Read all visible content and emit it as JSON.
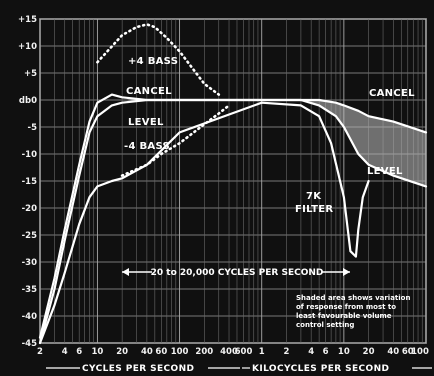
{
  "chart_data": {
    "type": "line",
    "title": "",
    "y_ticks": [
      "+15",
      "+10",
      "+5",
      "db0",
      "-5",
      "-10",
      "-15",
      "-20",
      "-25",
      "-30",
      "-35",
      "-40",
      "-45"
    ],
    "y_values": [
      15,
      10,
      5,
      0,
      -5,
      -10,
      -15,
      -20,
      -25,
      -30,
      -35,
      -40,
      -45
    ],
    "ylim": [
      -45,
      15
    ],
    "x_ticks_hz": [
      "2",
      "4",
      "6",
      "10",
      "20",
      "40",
      "60",
      "100",
      "200",
      "400",
      "600"
    ],
    "x_ticks_khz": [
      "1",
      "2",
      "4",
      "6",
      "10",
      "20",
      "40",
      "60",
      "100"
    ],
    "xlabel_left": "CYCLES PER SECOND",
    "xlabel_right": "KILOCYCLES PER SECOND",
    "grid": true,
    "series": [
      {
        "name": "+4 BASS",
        "style": "dotted",
        "x": [
          10,
          20,
          30,
          40,
          50,
          70,
          100,
          150,
          200,
          300
        ],
        "y": [
          7,
          12,
          13.5,
          14,
          13.5,
          11.5,
          9,
          5.5,
          3,
          1
        ]
      },
      {
        "name": "CANCEL",
        "style": "solid",
        "x": [
          2,
          3,
          4,
          6,
          8,
          10,
          15,
          20,
          40,
          100,
          1000,
          3000,
          5000,
          8000,
          10000,
          15000,
          20000,
          40000,
          100000
        ],
        "y": [
          -44,
          -33,
          -24,
          -12,
          -4,
          -0.5,
          1,
          0.5,
          0,
          0,
          0,
          0,
          0,
          -0.5,
          -1,
          -2,
          -3,
          -4,
          -6
        ]
      },
      {
        "name": "LEVEL",
        "style": "solid",
        "x": [
          2,
          3,
          4,
          6,
          8,
          10,
          15,
          20,
          40,
          100,
          1000,
          3000,
          5000,
          8000,
          10000,
          15000,
          20000,
          40000,
          100000
        ],
        "y": [
          -45,
          -35,
          -26,
          -14,
          -6,
          -3,
          -1,
          -0.5,
          0,
          0,
          0,
          0,
          -1,
          -3,
          -5,
          -10,
          -12,
          -14,
          -16
        ]
      },
      {
        "name": "-4 BASS",
        "style": "dotted",
        "x": [
          20,
          40,
          60,
          100,
          200,
          300,
          400
        ],
        "y": [
          -14,
          -12,
          -10,
          -8,
          -4.5,
          -2.5,
          -1
        ]
      },
      {
        "name": "7K FILTER",
        "style": "solid",
        "x": [
          2,
          3,
          4,
          6,
          8,
          10,
          15,
          20,
          40,
          100,
          1000,
          3000,
          5000,
          7000,
          10000,
          12000,
          14000,
          15000,
          17000,
          20000
        ],
        "y": [
          -45,
          -38,
          -32,
          -23,
          -18,
          -16,
          -15,
          -14.5,
          -12,
          -6,
          -0.5,
          -1,
          -3,
          -8,
          -18,
          -28,
          -29,
          -24,
          -18,
          -15
        ]
      }
    ],
    "annotations": [
      {
        "text": "+4 BASS"
      },
      {
        "text": "CANCEL"
      },
      {
        "text": "LEVEL"
      },
      {
        "text": "-4 BASS"
      },
      {
        "text": "CANCEL"
      },
      {
        "text": "LEVEL"
      },
      {
        "text": "7K"
      },
      {
        "text": "FILTER"
      }
    ],
    "range_label": "20 to 20,000 CYCLES PER SECOND",
    "note": [
      "Shaded area shows variation",
      "of response from most to",
      "least favourable volume",
      "control setting"
    ]
  }
}
